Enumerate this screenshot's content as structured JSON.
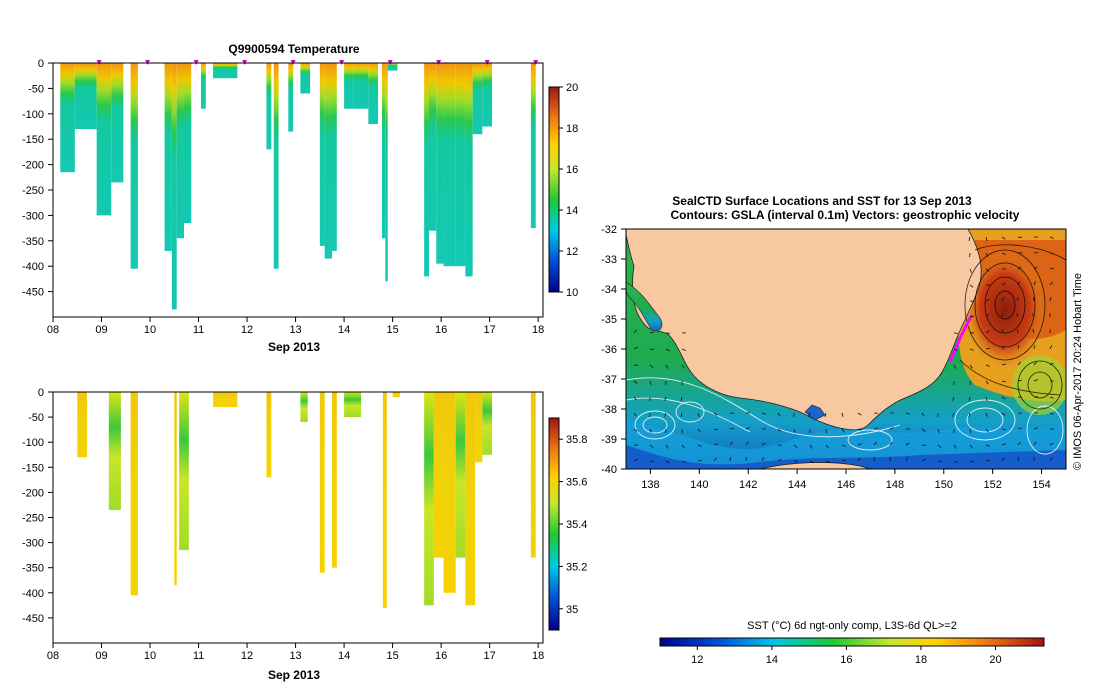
{
  "temperature_panel": {
    "title": "Q9900594  Temperature",
    "xlabel": "Sep 2013",
    "colorbar_ticks": [
      "20",
      "18",
      "16",
      "14",
      "12",
      "10"
    ]
  },
  "salinity_panel": {
    "xlabel": "Sep 2013",
    "colorbar_ticks": [
      "35.8",
      "35.6",
      "35.4",
      "35.2",
      "35"
    ]
  },
  "map_panel": {
    "title_line1": "SealCTD Surface Locations and SST for 13 Sep 2013",
    "title_line2": "Contours: GSLA (interval 0.1m) Vectors: geostrophic velocity",
    "colorbar_label": "SST (°C) 6d ngt-only comp, L3S-6d QL>=2",
    "colorbar_ticks": [
      "12",
      "14",
      "16",
      "18",
      "20"
    ],
    "side_label": "© IMOS 06-Apr-2017 20:24 Hobart Time",
    "colors": {
      "land": "#f8c8a0",
      "ocean_cool": "#1e90c8",
      "ocean_warm": "#c83214",
      "track": "#ff00ff"
    }
  },
  "chart_data": [
    {
      "type": "heatmap",
      "title": "Q9900594  Temperature",
      "xlabel": "Sep 2013",
      "ylabel": "",
      "x_ticks": [
        "08",
        "09",
        "10",
        "11",
        "12",
        "13",
        "14",
        "15",
        "16",
        "17",
        "18"
      ],
      "y_ticks": [
        "0",
        "-50",
        "-100",
        "-150",
        "-200",
        "-250",
        "-300",
        "-350",
        "-400",
        "-450"
      ],
      "xlim": [
        8,
        18.1
      ],
      "ylim": [
        -500,
        0
      ],
      "colorbar_range": [
        10,
        20
      ],
      "colorbar_ticks": [
        "20",
        "18",
        "16",
        "14",
        "12",
        "10"
      ],
      "markers_day": [
        8.95,
        9.95,
        10.95,
        11.95,
        12.95,
        13.95,
        14.95,
        15.95,
        16.95,
        17.95
      ],
      "profiles": [
        {
          "x0": 8.15,
          "x1": 8.45,
          "depth": 215
        },
        {
          "x0": 8.45,
          "x1": 8.9,
          "depth": 130
        },
        {
          "x0": 8.9,
          "x1": 9.2,
          "depth": 300
        },
        {
          "x0": 9.2,
          "x1": 9.45,
          "depth": 235
        },
        {
          "x0": 9.6,
          "x1": 9.75,
          "depth": 405
        },
        {
          "x0": 10.3,
          "x1": 10.45,
          "depth": 370
        },
        {
          "x0": 10.45,
          "x1": 10.55,
          "depth": 485
        },
        {
          "x0": 10.55,
          "x1": 10.7,
          "depth": 345
        },
        {
          "x0": 10.7,
          "x1": 10.85,
          "depth": 315
        },
        {
          "x0": 11.05,
          "x1": 11.15,
          "depth": 90
        },
        {
          "x0": 11.3,
          "x1": 11.8,
          "depth": 30
        },
        {
          "x0": 12.4,
          "x1": 12.5,
          "depth": 170
        },
        {
          "x0": 12.55,
          "x1": 12.65,
          "depth": 405
        },
        {
          "x0": 12.85,
          "x1": 12.95,
          "depth": 135
        },
        {
          "x0": 13.1,
          "x1": 13.3,
          "depth": 60
        },
        {
          "x0": 13.5,
          "x1": 13.6,
          "depth": 360
        },
        {
          "x0": 13.6,
          "x1": 13.75,
          "depth": 385
        },
        {
          "x0": 13.75,
          "x1": 13.85,
          "depth": 370
        },
        {
          "x0": 14.0,
          "x1": 14.2,
          "depth": 90
        },
        {
          "x0": 14.2,
          "x1": 14.5,
          "depth": 90
        },
        {
          "x0": 14.5,
          "x1": 14.7,
          "depth": 120
        },
        {
          "x0": 14.78,
          "x1": 14.85,
          "depth": 345
        },
        {
          "x0": 14.85,
          "x1": 14.9,
          "depth": 430
        },
        {
          "x0": 14.9,
          "x1": 15.1,
          "depth": 15
        },
        {
          "x0": 15.65,
          "x1": 15.75,
          "depth": 420
        },
        {
          "x0": 15.75,
          "x1": 15.9,
          "depth": 330
        },
        {
          "x0": 15.9,
          "x1": 16.05,
          "depth": 395
        },
        {
          "x0": 16.05,
          "x1": 16.3,
          "depth": 400
        },
        {
          "x0": 16.3,
          "x1": 16.5,
          "depth": 400
        },
        {
          "x0": 16.5,
          "x1": 16.65,
          "depth": 420
        },
        {
          "x0": 16.65,
          "x1": 16.85,
          "depth": 140
        },
        {
          "x0": 16.85,
          "x1": 17.05,
          "depth": 125
        },
        {
          "x0": 17.85,
          "x1": 17.95,
          "depth": 325
        }
      ]
    },
    {
      "type": "heatmap",
      "title": "",
      "xlabel": "Sep 2013",
      "ylabel": "",
      "x_ticks": [
        "08",
        "09",
        "10",
        "11",
        "12",
        "13",
        "14",
        "15",
        "16",
        "17",
        "18"
      ],
      "y_ticks": [
        "0",
        "-50",
        "-100",
        "-150",
        "-200",
        "-250",
        "-300",
        "-350",
        "-400",
        "-450"
      ],
      "xlim": [
        8,
        18.1
      ],
      "ylim": [
        -500,
        0
      ],
      "colorbar_range": [
        34.9,
        35.9
      ],
      "colorbar_ticks": [
        "35.8",
        "35.6",
        "35.4",
        "35.2",
        "35"
      ],
      "profiles": [
        {
          "x0": 8.5,
          "x1": 8.7,
          "depth": 130
        },
        {
          "x0": 9.15,
          "x1": 9.4,
          "depth": 235
        },
        {
          "x0": 9.6,
          "x1": 9.75,
          "depth": 405
        },
        {
          "x0": 10.5,
          "x1": 10.55,
          "depth": 385
        },
        {
          "x0": 10.6,
          "x1": 10.8,
          "depth": 315
        },
        {
          "x0": 11.3,
          "x1": 11.8,
          "depth": 30
        },
        {
          "x0": 12.4,
          "x1": 12.5,
          "depth": 170
        },
        {
          "x0": 13.1,
          "x1": 13.25,
          "depth": 60
        },
        {
          "x0": 13.5,
          "x1": 13.6,
          "depth": 360
        },
        {
          "x0": 13.75,
          "x1": 13.85,
          "depth": 350
        },
        {
          "x0": 14.0,
          "x1": 14.35,
          "depth": 50
        },
        {
          "x0": 14.8,
          "x1": 14.88,
          "depth": 430
        },
        {
          "x0": 15.0,
          "x1": 15.15,
          "depth": 10
        },
        {
          "x0": 15.65,
          "x1": 15.85,
          "depth": 425
        },
        {
          "x0": 15.85,
          "x1": 16.05,
          "depth": 330
        },
        {
          "x0": 16.05,
          "x1": 16.3,
          "depth": 400
        },
        {
          "x0": 16.3,
          "x1": 16.5,
          "depth": 330
        },
        {
          "x0": 16.5,
          "x1": 16.7,
          "depth": 425
        },
        {
          "x0": 16.7,
          "x1": 16.85,
          "depth": 140
        },
        {
          "x0": 16.85,
          "x1": 17.05,
          "depth": 125
        },
        {
          "x0": 17.85,
          "x1": 17.95,
          "depth": 330
        }
      ]
    },
    {
      "type": "heatmap",
      "title": "SealCTD Surface Locations and SST for 13 Sep 2013",
      "subtitle": "Contours: GSLA (interval 0.1m) Vectors: geostrophic velocity",
      "xlabel": "",
      "ylabel": "",
      "x_ticks": [
        "138",
        "140",
        "142",
        "144",
        "146",
        "148",
        "150",
        "152",
        "154"
      ],
      "y_ticks": [
        "-32",
        "-33",
        "-34",
        "-35",
        "-36",
        "-37",
        "-38",
        "-39",
        "-40"
      ],
      "xlim": [
        137,
        155
      ],
      "ylim": [
        -40,
        -32
      ],
      "colorbar_label": "SST (°C) 6d ngt-only comp, L3S-6d QL>=2",
      "colorbar_range": [
        11,
        21.3
      ],
      "colorbar_ticks": [
        "12",
        "14",
        "16",
        "18",
        "20"
      ]
    }
  ]
}
